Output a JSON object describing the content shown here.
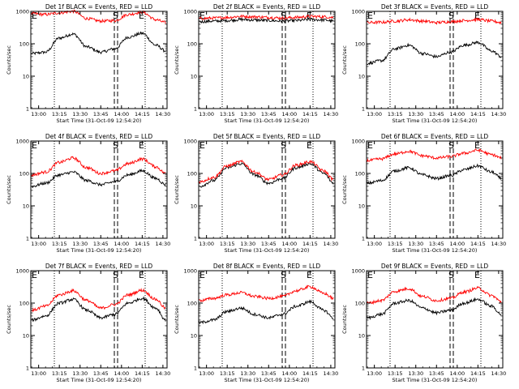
{
  "figure": {
    "xtick_labels": [
      "13:00",
      "13:15",
      "13:30",
      "13:45",
      "14:00",
      "14:15",
      "14:30"
    ],
    "ytick_labels": [
      "1",
      "10",
      "100",
      "1000"
    ],
    "xlabel": "Start Time (31-Oct-09 12:54:20)",
    "ylabel": "Counts/sec",
    "markers": {
      "e": "E",
      "s": "S"
    },
    "colors": {
      "events": "#000000",
      "lld": "#ff0000"
    }
  },
  "chart_data": [
    {
      "type": "line",
      "title": "Det 1f BLACK = Events, RED = LLD",
      "x_minutes": [],
      "ylim": [
        1,
        1000
      ],
      "log_y": true,
      "x_range": [
        "12:54:20",
        "14:33:00"
      ],
      "series": [
        {
          "name": "Events",
          "x": [
            "12:55",
            "13:05",
            "13:15",
            "13:25",
            "13:35",
            "13:45",
            "13:55",
            "14:05",
            "14:15",
            "14:25",
            "14:32"
          ],
          "values": [
            50,
            55,
            150,
            200,
            80,
            55,
            70,
            160,
            210,
            90,
            60
          ]
        },
        {
          "name": "LLD",
          "x": [
            "12:55",
            "13:05",
            "13:15",
            "13:25",
            "13:35",
            "13:45",
            "13:55",
            "14:05",
            "14:15",
            "14:25",
            "14:32"
          ],
          "values": [
            850,
            800,
            900,
            1000,
            600,
            500,
            520,
            800,
            950,
            550,
            450
          ]
        }
      ]
    },
    {
      "type": "line",
      "title": "Det 2f BLACK = Events, RED = LLD",
      "ylim": [
        1,
        1000
      ],
      "log_y": true,
      "x_range": [
        "12:54:20",
        "14:33:00"
      ],
      "series": [
        {
          "name": "Events",
          "x": [
            "12:55",
            "13:05",
            "13:15",
            "13:25",
            "13:35",
            "13:45",
            "13:55",
            "14:05",
            "14:15",
            "14:25",
            "14:32"
          ],
          "values": [
            480,
            500,
            520,
            560,
            540,
            520,
            500,
            520,
            560,
            540,
            500
          ]
        },
        {
          "name": "LLD",
          "x": [
            "12:55",
            "13:05",
            "13:15",
            "13:25",
            "13:35",
            "13:45",
            "13:55",
            "14:05",
            "14:15",
            "14:25",
            "14:32"
          ],
          "values": [
            600,
            620,
            650,
            700,
            680,
            650,
            620,
            650,
            700,
            680,
            650
          ]
        }
      ]
    },
    {
      "type": "line",
      "title": "Det 3f BLACK = Events, RED = LLD",
      "ylim": [
        1,
        1000
      ],
      "log_y": true,
      "x_range": [
        "12:54:20",
        "14:33:00"
      ],
      "series": [
        {
          "name": "Events",
          "x": [
            "12:55",
            "13:05",
            "13:15",
            "13:25",
            "13:35",
            "13:45",
            "13:55",
            "14:05",
            "14:15",
            "14:25",
            "14:32"
          ],
          "values": [
            25,
            30,
            70,
            90,
            50,
            40,
            55,
            90,
            110,
            60,
            40
          ]
        },
        {
          "name": "LLD",
          "x": [
            "12:55",
            "13:05",
            "13:15",
            "13:25",
            "13:35",
            "13:45",
            "13:55",
            "14:05",
            "14:15",
            "14:25",
            "14:32"
          ],
          "values": [
            450,
            460,
            500,
            550,
            500,
            450,
            480,
            520,
            560,
            500,
            450
          ]
        }
      ]
    },
    {
      "type": "line",
      "title": "Det 4f BLACK = Events, RED = LLD",
      "ylim": [
        1,
        1000
      ],
      "log_y": true,
      "x_range": [
        "12:54:20",
        "14:33:00"
      ],
      "series": [
        {
          "name": "Events",
          "x": [
            "12:55",
            "13:05",
            "13:15",
            "13:25",
            "13:35",
            "13:45",
            "13:55",
            "14:05",
            "14:15",
            "14:25",
            "14:32"
          ],
          "values": [
            40,
            50,
            90,
            110,
            60,
            45,
            55,
            90,
            120,
            70,
            45
          ]
        },
        {
          "name": "LLD",
          "x": [
            "12:55",
            "13:05",
            "13:15",
            "13:25",
            "13:35",
            "13:45",
            "13:55",
            "14:05",
            "14:15",
            "14:25",
            "14:32"
          ],
          "values": [
            90,
            110,
            220,
            300,
            150,
            100,
            120,
            200,
            280,
            160,
            100
          ]
        }
      ]
    },
    {
      "type": "line",
      "title": "Det 5f BLACK = Events, RED = LLD",
      "ylim": [
        1,
        1000
      ],
      "log_y": true,
      "x_range": [
        "12:54:20",
        "14:33:00"
      ],
      "series": [
        {
          "name": "Events",
          "x": [
            "12:55",
            "13:05",
            "13:15",
            "13:25",
            "13:35",
            "13:45",
            "13:55",
            "14:05",
            "14:15",
            "14:25",
            "14:32"
          ],
          "values": [
            40,
            60,
            150,
            200,
            90,
            50,
            70,
            150,
            200,
            100,
            50
          ]
        },
        {
          "name": "LLD",
          "x": [
            "12:55",
            "13:05",
            "13:15",
            "13:25",
            "13:35",
            "13:45",
            "13:55",
            "14:05",
            "14:15",
            "14:25",
            "14:32"
          ],
          "values": [
            55,
            75,
            170,
            230,
            110,
            65,
            90,
            180,
            230,
            120,
            65
          ]
        }
      ]
    },
    {
      "type": "line",
      "title": "Det 6f BLACK = Events, RED = LLD",
      "ylim": [
        1,
        1000
      ],
      "log_y": true,
      "x_range": [
        "12:54:20",
        "14:33:00"
      ],
      "series": [
        {
          "name": "Events",
          "x": [
            "12:55",
            "13:05",
            "13:15",
            "13:25",
            "13:35",
            "13:45",
            "13:55",
            "14:05",
            "14:15",
            "14:25",
            "14:32"
          ],
          "values": [
            50,
            60,
            120,
            150,
            90,
            70,
            85,
            130,
            170,
            110,
            70
          ]
        },
        {
          "name": "LLD",
          "x": [
            "12:55",
            "13:05",
            "13:15",
            "13:25",
            "13:35",
            "13:45",
            "13:55",
            "14:05",
            "14:15",
            "14:25",
            "14:32"
          ],
          "values": [
            250,
            280,
            400,
            480,
            350,
            300,
            330,
            420,
            520,
            380,
            300
          ]
        }
      ]
    },
    {
      "type": "line",
      "title": "Det 7f BLACK = Events, RED = LLD",
      "ylim": [
        1,
        1000
      ],
      "log_y": true,
      "x_range": [
        "12:54:20",
        "14:33:00"
      ],
      "series": [
        {
          "name": "Events",
          "x": [
            "12:55",
            "13:05",
            "13:15",
            "13:25",
            "13:35",
            "13:45",
            "13:55",
            "14:05",
            "14:15",
            "14:25",
            "14:32"
          ],
          "values": [
            30,
            40,
            100,
            130,
            60,
            35,
            45,
            100,
            140,
            70,
            30
          ]
        },
        {
          "name": "LLD",
          "x": [
            "12:55",
            "13:05",
            "13:15",
            "13:25",
            "13:35",
            "13:45",
            "13:55",
            "14:05",
            "14:15",
            "14:25",
            "14:32"
          ],
          "values": [
            60,
            80,
            180,
            240,
            120,
            70,
            90,
            180,
            250,
            130,
            70
          ]
        }
      ]
    },
    {
      "type": "line",
      "title": "Det 8f BLACK = Events, RED = LLD",
      "ylim": [
        1,
        1000
      ],
      "log_y": true,
      "x_range": [
        "12:54:20",
        "14:33:00"
      ],
      "series": [
        {
          "name": "Events",
          "x": [
            "12:55",
            "13:05",
            "13:15",
            "13:25",
            "13:35",
            "13:45",
            "13:55",
            "14:05",
            "14:15",
            "14:25",
            "14:32"
          ],
          "values": [
            25,
            30,
            55,
            70,
            45,
            35,
            45,
            80,
            110,
            60,
            35
          ]
        },
        {
          "name": "LLD",
          "x": [
            "12:55",
            "13:05",
            "13:15",
            "13:25",
            "13:35",
            "13:45",
            "13:55",
            "14:05",
            "14:15",
            "14:25",
            "14:32"
          ],
          "values": [
            120,
            140,
            180,
            210,
            160,
            140,
            160,
            240,
            320,
            200,
            140
          ]
        }
      ]
    },
    {
      "type": "line",
      "title": "Det 9f BLACK = Events, RED = LLD",
      "ylim": [
        1,
        1000
      ],
      "log_y": true,
      "x_range": [
        "12:54:20",
        "14:33:00"
      ],
      "series": [
        {
          "name": "Events",
          "x": [
            "12:55",
            "13:05",
            "13:15",
            "13:25",
            "13:35",
            "13:45",
            "13:55",
            "14:05",
            "14:15",
            "14:25",
            "14:32"
          ],
          "values": [
            35,
            45,
            100,
            120,
            70,
            50,
            60,
            100,
            130,
            80,
            45
          ]
        },
        {
          "name": "LLD",
          "x": [
            "12:55",
            "13:05",
            "13:15",
            "13:25",
            "13:35",
            "13:45",
            "13:55",
            "14:05",
            "14:15",
            "14:25",
            "14:32"
          ],
          "values": [
            100,
            120,
            230,
            280,
            160,
            120,
            140,
            220,
            290,
            170,
            110
          ]
        }
      ]
    }
  ]
}
